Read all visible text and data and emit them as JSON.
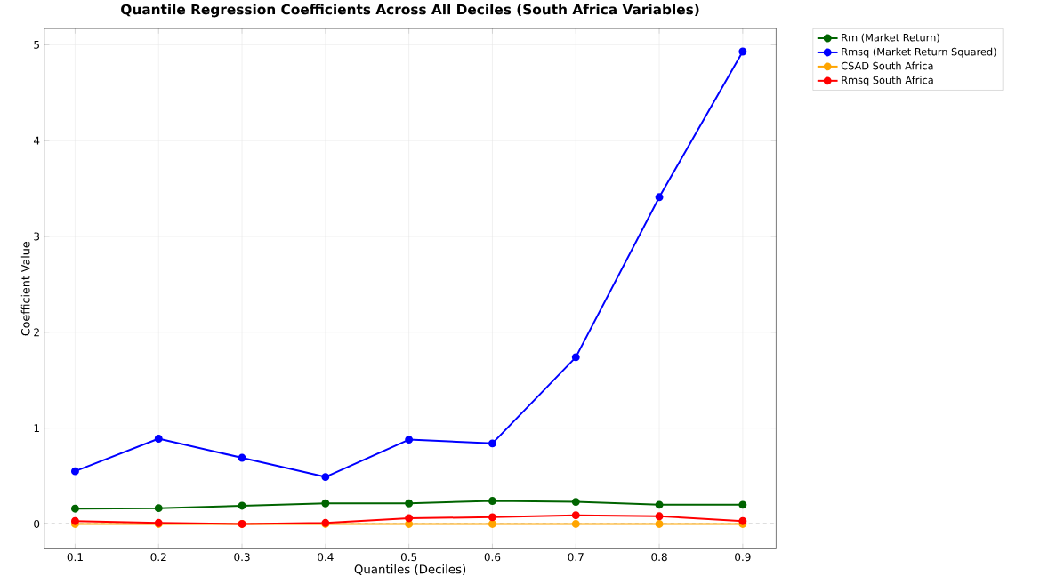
{
  "chart_data": {
    "type": "line",
    "title": "Quantile Regression Coefficients Across All Deciles (South Africa Variables)",
    "xlabel": "Quantiles (Deciles)",
    "ylabel": "Coefficient Value",
    "x": [
      0.1,
      0.2,
      0.3,
      0.4,
      0.5,
      0.6,
      0.7,
      0.8,
      0.9
    ],
    "series": [
      {
        "name": "Rm (Market Return)",
        "color": "#006400",
        "values": [
          0.16,
          0.165,
          0.19,
          0.215,
          0.215,
          0.24,
          0.23,
          0.2,
          0.2
        ]
      },
      {
        "name": "Rmsq (Market Return Squared)",
        "color": "#0000ff",
        "values": [
          0.55,
          0.89,
          0.69,
          0.49,
          0.88,
          0.84,
          1.74,
          3.41,
          4.93
        ]
      },
      {
        "name": "CSAD South Africa",
        "color": "#ffa500",
        "values": [
          0.0,
          0.0,
          0.0,
          0.0,
          0.0,
          0.0,
          0.0,
          0.0,
          0.0
        ]
      },
      {
        "name": "Rmsq South Africa",
        "color": "#ff0000",
        "values": [
          0.03,
          0.01,
          0.0,
          0.01,
          0.06,
          0.07,
          0.09,
          0.08,
          0.03
        ]
      }
    ],
    "xlim": [
      0.063,
      0.94
    ],
    "ylim": [
      -0.26,
      5.17
    ],
    "xticks": [
      0.1,
      0.2,
      0.3,
      0.4,
      0.5,
      0.6,
      0.7,
      0.8,
      0.9
    ],
    "yticks": [
      0,
      1,
      2,
      3,
      4,
      5
    ],
    "ref_lines": [
      {
        "axis": "y",
        "value": 0,
        "color": "#808080",
        "line_style": "dashed"
      }
    ],
    "grid": true,
    "legend": "top right",
    "marker": "circle",
    "line_style": "solid"
  }
}
